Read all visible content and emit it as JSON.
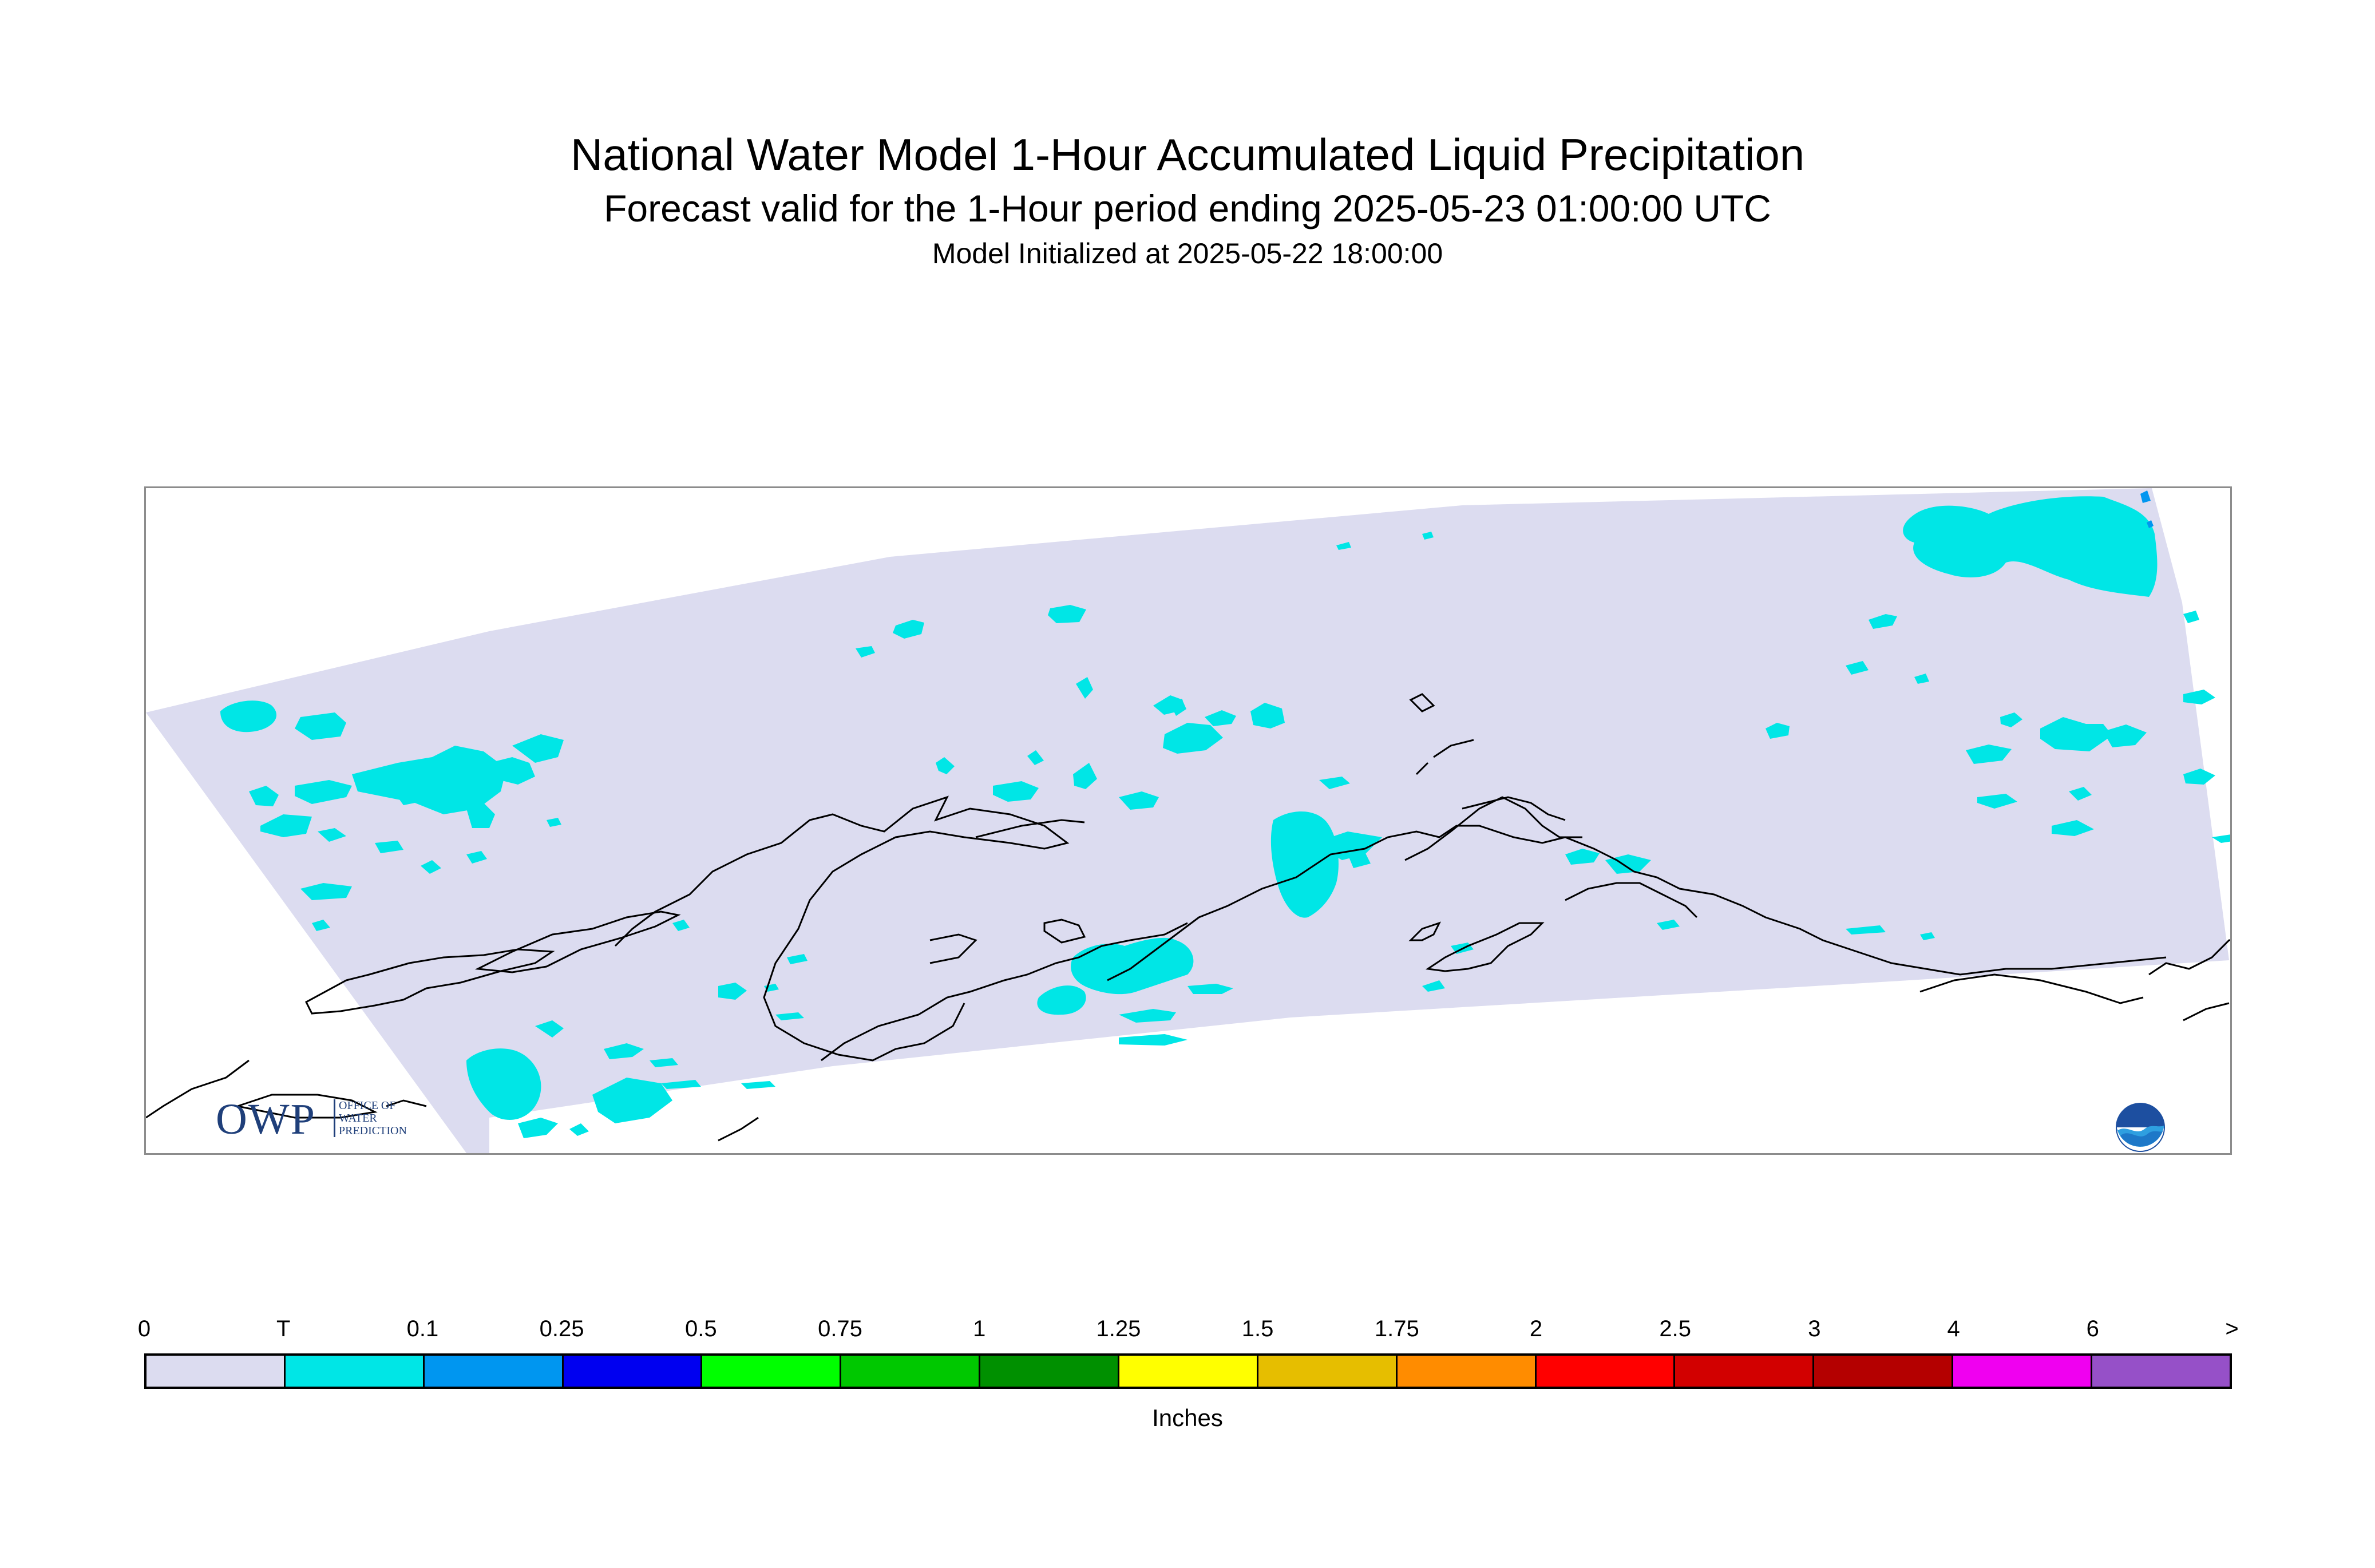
{
  "header": {
    "title": "National Water Model 1-Hour Accumulated Liquid Precipitation",
    "subtitle": "Forecast valid for the 1-Hour period ending 2025-05-23 01:00:00 UTC",
    "init": "Model Initialized at 2025-05-22 18:00:00"
  },
  "map": {
    "region_fill": "#dcdcf0",
    "precip_color": "#00e6e6",
    "heavier_precip_color": "#0096f0",
    "coastline_color": "#000000",
    "owp_logo": {
      "letters": "OWP",
      "tagline_lines": [
        "OFFICE OF",
        "WATER",
        "PREDICTION"
      ]
    },
    "noaa_logo_icon": "noaa-emblem-icon"
  },
  "legend": {
    "labels": [
      "0",
      "T",
      "0.1",
      "0.25",
      "0.5",
      "0.75",
      "1",
      "1.25",
      "1.5",
      "1.75",
      "2",
      "2.5",
      "3",
      "4",
      "6",
      ">"
    ],
    "colors": [
      "#dcdcf0",
      "#00e6e6",
      "#0096f0",
      "#0000f0",
      "#00ff00",
      "#00c800",
      "#009000",
      "#ffff00",
      "#e6be00",
      "#ff8c00",
      "#ff0000",
      "#d20000",
      "#b40000",
      "#f000f0",
      "#9650c8"
    ],
    "units": "Inches"
  }
}
